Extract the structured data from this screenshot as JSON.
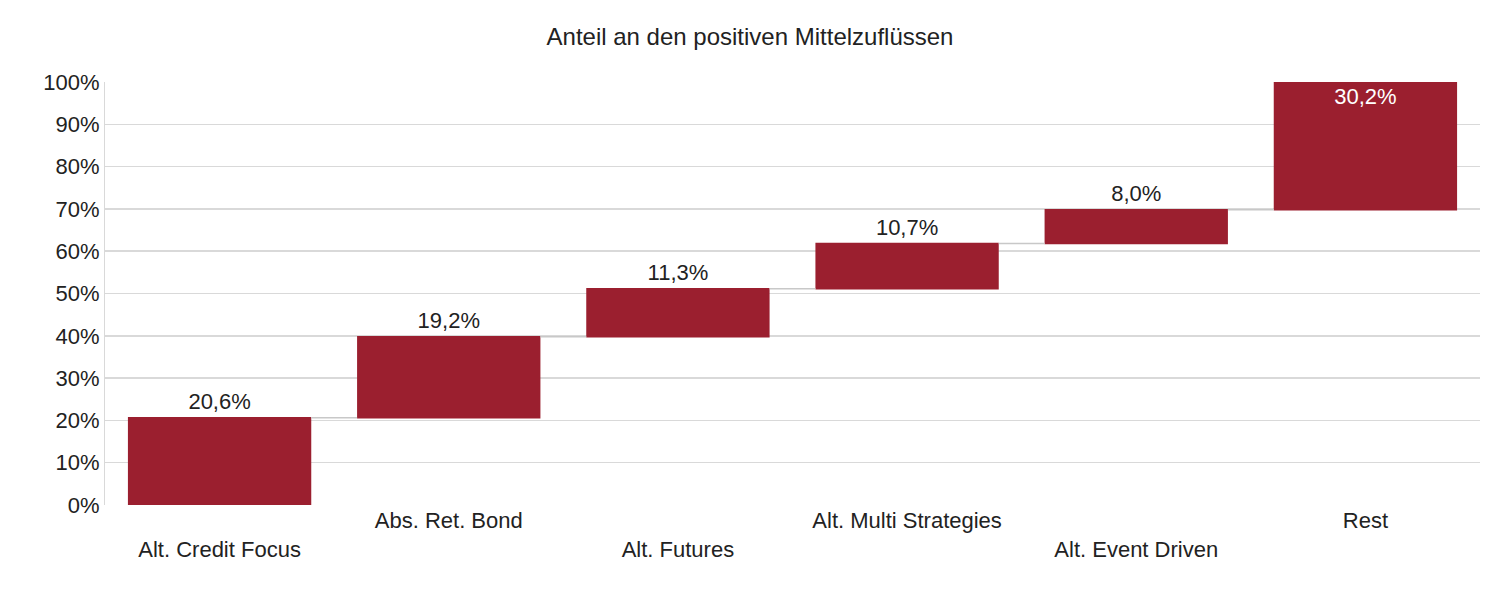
{
  "chart_data": {
    "type": "waterfall",
    "title": "Anteil an den positiven Mittelzuflüssen",
    "categories": [
      "Alt. Credit Focus",
      "Abs. Ret. Bond",
      "Alt. Futures",
      "Alt. Multi Strategies",
      "Alt. Event Driven",
      "Rest"
    ],
    "values": [
      20.6,
      19.2,
      11.3,
      10.7,
      8.0,
      30.2
    ],
    "value_labels": [
      "20,6%",
      "19,2%",
      "11,3%",
      "10,7%",
      "8,0%",
      "30,2%"
    ],
    "color": "#9b1f2f",
    "ylim": [
      0,
      100
    ],
    "yticks": [
      {
        "value": 0,
        "label": "0%"
      },
      {
        "value": 10,
        "label": "10%"
      },
      {
        "value": 20,
        "label": "20%"
      },
      {
        "value": 30,
        "label": "30%"
      },
      {
        "value": 40,
        "label": "40%"
      },
      {
        "value": 50,
        "label": "50%"
      },
      {
        "value": 60,
        "label": "60%"
      },
      {
        "value": 70,
        "label": "70%"
      },
      {
        "value": 80,
        "label": "80%"
      },
      {
        "value": 90,
        "label": "90%"
      },
      {
        "value": 100,
        "label": "100%"
      }
    ],
    "grid": true,
    "data_labels": true
  }
}
